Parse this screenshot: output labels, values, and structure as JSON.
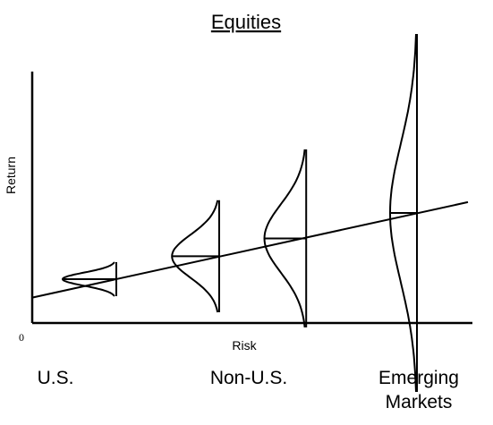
{
  "title": "Equities",
  "axes": {
    "x_label": "Risk",
    "y_label": "Return",
    "origin_label": "0"
  },
  "categories": [
    {
      "label_lines": [
        "U.S."
      ],
      "risk": 1.0,
      "return": 1.0,
      "spread": 1.0
    },
    {
      "label_lines": [
        "Non-U.S."
      ],
      "risk": 2.3,
      "return": 1.9,
      "spread": 2.3
    },
    {
      "label_lines": [
        "Non-U.S."
      ],
      "risk": 3.4,
      "return": 2.6,
      "spread": 3.4
    },
    {
      "label_lines": [
        "Emerging",
        "Markets"
      ],
      "risk": 4.8,
      "return": 3.6,
      "spread": 6.4
    }
  ],
  "trend_line": {
    "type": "linear",
    "label": ""
  },
  "colors": {
    "ink": "#000000",
    "background": "#ffffff"
  }
}
